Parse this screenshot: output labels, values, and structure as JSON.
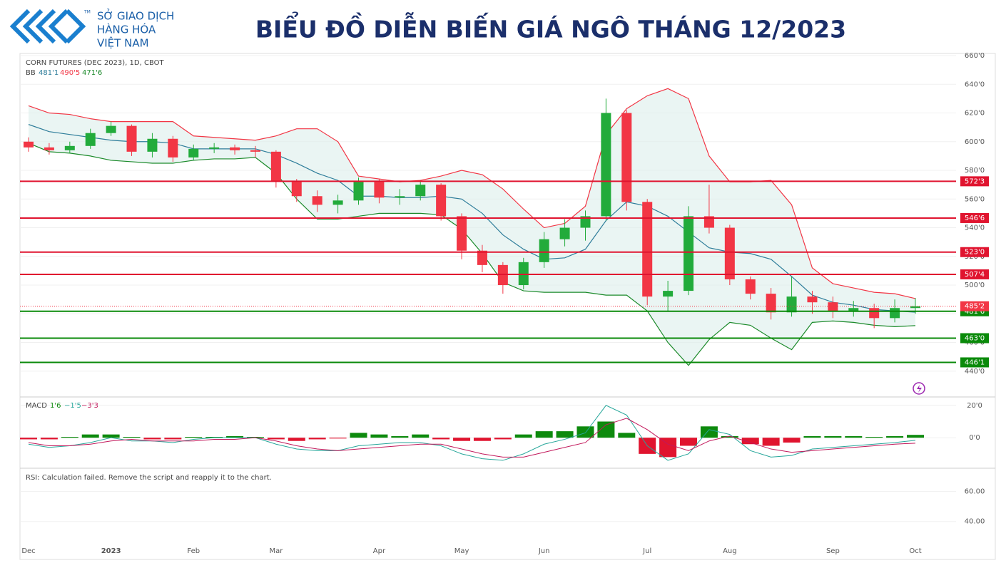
{
  "header": {
    "logo_line1": "SỞ GIAO DỊCH",
    "logo_line2": "HÀNG HÓA",
    "logo_line3": "VIỆT NAM",
    "logo_tm": "TM",
    "title": "BIỂU ĐỒ DIỄN BIẾN GIÁ NGÔ THÁNG 12/2023"
  },
  "chart_data": [
    {
      "type": "candlestick",
      "title": "CORN FUTURES (DEC 2023), 1D, CBOT",
      "categories": [
        "Dec",
        null,
        null,
        null,
        "2023",
        null,
        null,
        null,
        "Feb",
        null,
        null,
        null,
        "Mar",
        null,
        null,
        null,
        null,
        "Apr",
        null,
        null,
        null,
        "May",
        null,
        null,
        null,
        "Jun",
        null,
        null,
        null,
        null,
        "Jul",
        null,
        null,
        null,
        "Aug",
        null,
        null,
        null,
        null,
        "Sep",
        null,
        null,
        null,
        "Oct"
      ],
      "open": [
        600,
        596,
        594,
        597,
        606,
        611,
        593,
        602,
        589,
        595,
        596,
        594,
        593,
        572,
        562,
        556,
        559,
        572,
        561,
        562,
        570,
        548,
        524,
        514,
        500,
        516,
        532,
        540,
        548,
        620,
        558,
        492,
        496,
        548,
        540,
        504,
        494,
        481,
        492,
        488,
        482,
        484,
        477,
        484
      ],
      "high": [
        603,
        599,
        600,
        609,
        614,
        612,
        606,
        604,
        598,
        599,
        598,
        597,
        594,
        574,
        566,
        563,
        575,
        574,
        567,
        573,
        571,
        550,
        528,
        516,
        519,
        537,
        546,
        552,
        630,
        622,
        560,
        503,
        555,
        570,
        542,
        506,
        498,
        506,
        496,
        492,
        489,
        487,
        490,
        491
      ],
      "low": [
        593,
        591,
        592,
        595,
        604,
        590,
        589,
        586,
        587,
        592,
        591,
        589,
        568,
        558,
        551,
        550,
        556,
        557,
        556,
        559,
        545,
        518,
        509,
        494,
        497,
        512,
        527,
        531,
        545,
        552,
        486,
        482,
        493,
        536,
        500,
        490,
        476,
        478,
        480,
        477,
        478,
        470,
        474,
        480
      ],
      "close": [
        596,
        594,
        597,
        606,
        611,
        593,
        602,
        589,
        595,
        596,
        594,
        593,
        572,
        562,
        556,
        559,
        572,
        561,
        562,
        570,
        548,
        524,
        514,
        500,
        516,
        532,
        540,
        548,
        620,
        558,
        492,
        496,
        548,
        540,
        504,
        494,
        481,
        492,
        488,
        482,
        484,
        477,
        484,
        485.25
      ],
      "last_label": "485'2",
      "up_color": "#22ab3b",
      "down_color": "#f23645",
      "bollinger": {
        "label": "BB",
        "upper": [
          625,
          620,
          619,
          616,
          614,
          614,
          614,
          614,
          604,
          603,
          602,
          601,
          604,
          609,
          609,
          600,
          576,
          574,
          572,
          573,
          576,
          580,
          577,
          567,
          553,
          540,
          543,
          555,
          605,
          623,
          632,
          637,
          630,
          590,
          572,
          572,
          573,
          556,
          512,
          501,
          498,
          495,
          494,
          490.625
        ],
        "middle": [
          612,
          607,
          605,
          603,
          601,
          600,
          600,
          599,
          595,
          595,
          595,
          595,
          591,
          585,
          578,
          573,
          562,
          562,
          561,
          561,
          562,
          560,
          550,
          535,
          525,
          518,
          519,
          525,
          545,
          558,
          555,
          548,
          537,
          526,
          523,
          522,
          518,
          506,
          493,
          488,
          486,
          483,
          482,
          481.125
        ],
        "lower": [
          599,
          593,
          592,
          590,
          587,
          586,
          585,
          585,
          587,
          588,
          588,
          589,
          578,
          560,
          546,
          546,
          548,
          550,
          550,
          550,
          549,
          539,
          522,
          502,
          496,
          495,
          495,
          495,
          493,
          493,
          482,
          460,
          444,
          462,
          474,
          472,
          463,
          455,
          474,
          475,
          474,
          472,
          471,
          471.75
        ],
        "middle_label": "481'1",
        "upper_label": "490'5",
        "lower_label": "471'6",
        "upper_color": "#f23645",
        "middle_color": "#2e7d9a",
        "lower_color": "#1b8a2a",
        "fill": "#dcefeb"
      },
      "levels": [
        {
          "value": 572.375,
          "label": "572'3",
          "color": "#e0142f"
        },
        {
          "value": 546.75,
          "label": "546'6",
          "color": "#e0142f"
        },
        {
          "value": 523,
          "label": "523'0",
          "color": "#e0142f"
        },
        {
          "value": 507.5,
          "label": "507'4",
          "color": "#e0142f"
        },
        {
          "value": 481.75,
          "label": "481'6",
          "color": "#0a8a0a"
        },
        {
          "value": 463,
          "label": "463'0",
          "color": "#0a8a0a"
        },
        {
          "value": 446.125,
          "label": "446'1",
          "color": "#0a8a0a"
        }
      ],
      "ylim": [
        424,
        661.5
      ],
      "yticks": [
        {
          "value": 660,
          "label": "660'0"
        },
        {
          "value": 640,
          "label": "640'0"
        },
        {
          "value": 620,
          "label": "620'0"
        },
        {
          "value": 600,
          "label": "600'0"
        },
        {
          "value": 580,
          "label": "580'0"
        },
        {
          "value": 560,
          "label": "560'0"
        },
        {
          "value": 540,
          "label": "540'0"
        },
        {
          "value": 520,
          "label": "520'0"
        },
        {
          "value": 500,
          "label": "500'0"
        },
        {
          "value": 480,
          "label": "480'0"
        },
        {
          "value": 460,
          "label": "460'0"
        },
        {
          "value": 440,
          "label": "440'0"
        }
      ]
    },
    {
      "type": "macd",
      "title": "MACD",
      "histogram_label": "1'6",
      "macd_label": "−1'5",
      "signal_label": "−3'3",
      "histogram": [
        -1,
        -1,
        0.5,
        2,
        2,
        0.5,
        -1,
        -1,
        0.5,
        0.5,
        1,
        0.5,
        -1,
        -2,
        -1,
        -0.5,
        3,
        2,
        1,
        2,
        -1,
        -2,
        -2,
        -1,
        2,
        4,
        4,
        7,
        10,
        3,
        -10,
        -12,
        -5,
        7,
        1,
        -4,
        -5,
        -3,
        1,
        1,
        1,
        0.5,
        1,
        1.75
      ],
      "macd": [
        -4,
        -6,
        -5,
        -3,
        0,
        -2,
        -2,
        -3,
        -1,
        0,
        0,
        0,
        -4,
        -7,
        -8,
        -8,
        -5,
        -4,
        -3,
        -3,
        -5,
        -10,
        -13,
        -14,
        -10,
        -4,
        -1,
        3,
        20,
        14,
        -5,
        -14,
        -10,
        5,
        2,
        -8,
        -12,
        -11,
        -7,
        -6,
        -5,
        -4,
        -3,
        -1.625
      ],
      "signal": [
        -3,
        -5,
        -5,
        -4,
        -2,
        -1,
        -2,
        -2,
        -2,
        -1,
        -1,
        0,
        -2,
        -5,
        -7,
        -8,
        -7,
        -6,
        -5,
        -4,
        -4,
        -7,
        -10,
        -12,
        -12,
        -9,
        -6,
        -3,
        8,
        12,
        5,
        -4,
        -8,
        -2,
        1,
        -3,
        -7,
        -9,
        -8,
        -7,
        -6,
        -5,
        -4,
        -3.375
      ],
      "pos_color": "#0d8a0d",
      "neg_color": "#e0142f",
      "macd_color": "#26a69a",
      "signal_color": "#c2185b",
      "ylim": [
        -18,
        23
      ],
      "yticks": [
        {
          "value": 20,
          "label": "20'0"
        },
        {
          "value": 0,
          "label": "0'0"
        }
      ]
    },
    {
      "type": "rsi",
      "message": "RSI: Calculation failed. Remove the script and reapply it to the chart.",
      "ylim": [
        28,
        75
      ],
      "yticks": [
        {
          "value": 60,
          "label": "60.00"
        },
        {
          "value": 40,
          "label": "40.00"
        }
      ]
    }
  ]
}
